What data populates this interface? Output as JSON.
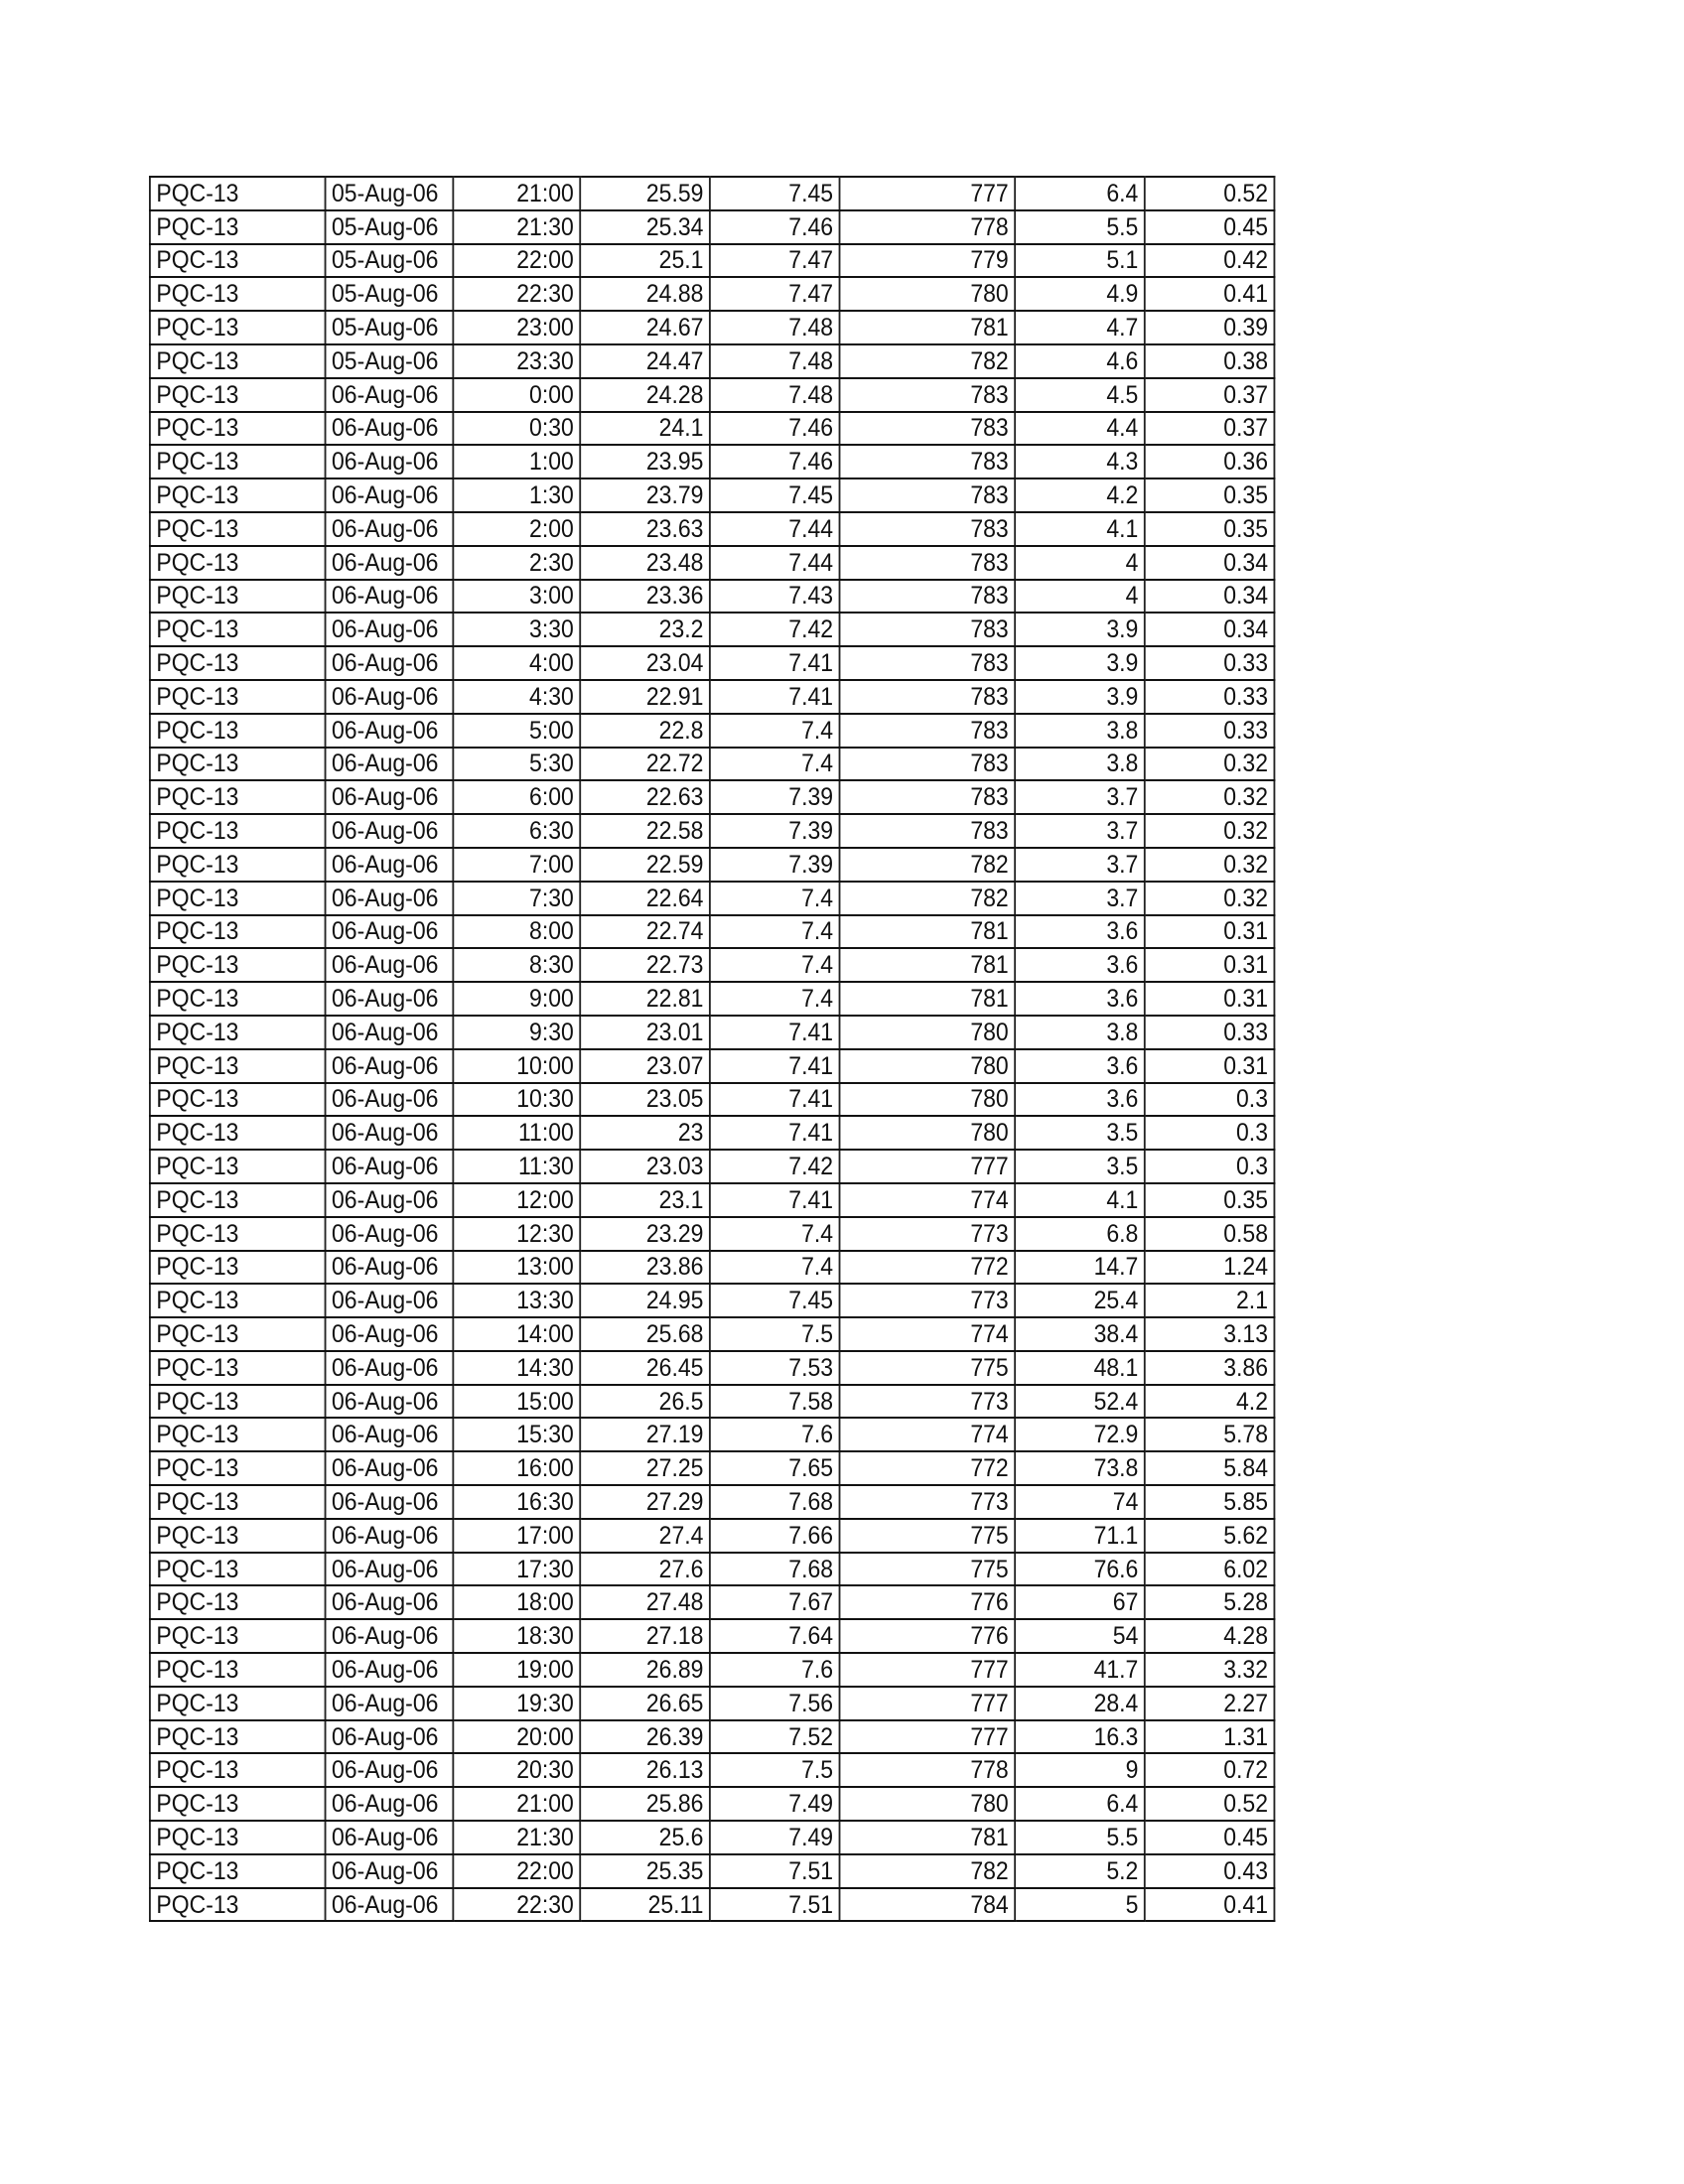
{
  "table": {
    "station": "PQC-13",
    "rows": [
      [
        "PQC-13",
        "05-Aug-06",
        "21:00",
        "25.59",
        "7.45",
        "777",
        "6.4",
        "0.52"
      ],
      [
        "PQC-13",
        "05-Aug-06",
        "21:30",
        "25.34",
        "7.46",
        "778",
        "5.5",
        "0.45"
      ],
      [
        "PQC-13",
        "05-Aug-06",
        "22:00",
        "25.1",
        "7.47",
        "779",
        "5.1",
        "0.42"
      ],
      [
        "PQC-13",
        "05-Aug-06",
        "22:30",
        "24.88",
        "7.47",
        "780",
        "4.9",
        "0.41"
      ],
      [
        "PQC-13",
        "05-Aug-06",
        "23:00",
        "24.67",
        "7.48",
        "781",
        "4.7",
        "0.39"
      ],
      [
        "PQC-13",
        "05-Aug-06",
        "23:30",
        "24.47",
        "7.48",
        "782",
        "4.6",
        "0.38"
      ],
      [
        "PQC-13",
        "06-Aug-06",
        "0:00",
        "24.28",
        "7.48",
        "783",
        "4.5",
        "0.37"
      ],
      [
        "PQC-13",
        "06-Aug-06",
        "0:30",
        "24.1",
        "7.46",
        "783",
        "4.4",
        "0.37"
      ],
      [
        "PQC-13",
        "06-Aug-06",
        "1:00",
        "23.95",
        "7.46",
        "783",
        "4.3",
        "0.36"
      ],
      [
        "PQC-13",
        "06-Aug-06",
        "1:30",
        "23.79",
        "7.45",
        "783",
        "4.2",
        "0.35"
      ],
      [
        "PQC-13",
        "06-Aug-06",
        "2:00",
        "23.63",
        "7.44",
        "783",
        "4.1",
        "0.35"
      ],
      [
        "PQC-13",
        "06-Aug-06",
        "2:30",
        "23.48",
        "7.44",
        "783",
        "4",
        "0.34"
      ],
      [
        "PQC-13",
        "06-Aug-06",
        "3:00",
        "23.36",
        "7.43",
        "783",
        "4",
        "0.34"
      ],
      [
        "PQC-13",
        "06-Aug-06",
        "3:30",
        "23.2",
        "7.42",
        "783",
        "3.9",
        "0.34"
      ],
      [
        "PQC-13",
        "06-Aug-06",
        "4:00",
        "23.04",
        "7.41",
        "783",
        "3.9",
        "0.33"
      ],
      [
        "PQC-13",
        "06-Aug-06",
        "4:30",
        "22.91",
        "7.41",
        "783",
        "3.9",
        "0.33"
      ],
      [
        "PQC-13",
        "06-Aug-06",
        "5:00",
        "22.8",
        "7.4",
        "783",
        "3.8",
        "0.33"
      ],
      [
        "PQC-13",
        "06-Aug-06",
        "5:30",
        "22.72",
        "7.4",
        "783",
        "3.8",
        "0.32"
      ],
      [
        "PQC-13",
        "06-Aug-06",
        "6:00",
        "22.63",
        "7.39",
        "783",
        "3.7",
        "0.32"
      ],
      [
        "PQC-13",
        "06-Aug-06",
        "6:30",
        "22.58",
        "7.39",
        "783",
        "3.7",
        "0.32"
      ],
      [
        "PQC-13",
        "06-Aug-06",
        "7:00",
        "22.59",
        "7.39",
        "782",
        "3.7",
        "0.32"
      ],
      [
        "PQC-13",
        "06-Aug-06",
        "7:30",
        "22.64",
        "7.4",
        "782",
        "3.7",
        "0.32"
      ],
      [
        "PQC-13",
        "06-Aug-06",
        "8:00",
        "22.74",
        "7.4",
        "781",
        "3.6",
        "0.31"
      ],
      [
        "PQC-13",
        "06-Aug-06",
        "8:30",
        "22.73",
        "7.4",
        "781",
        "3.6",
        "0.31"
      ],
      [
        "PQC-13",
        "06-Aug-06",
        "9:00",
        "22.81",
        "7.4",
        "781",
        "3.6",
        "0.31"
      ],
      [
        "PQC-13",
        "06-Aug-06",
        "9:30",
        "23.01",
        "7.41",
        "780",
        "3.8",
        "0.33"
      ],
      [
        "PQC-13",
        "06-Aug-06",
        "10:00",
        "23.07",
        "7.41",
        "780",
        "3.6",
        "0.31"
      ],
      [
        "PQC-13",
        "06-Aug-06",
        "10:30",
        "23.05",
        "7.41",
        "780",
        "3.6",
        "0.3"
      ],
      [
        "PQC-13",
        "06-Aug-06",
        "11:00",
        "23",
        "7.41",
        "780",
        "3.5",
        "0.3"
      ],
      [
        "PQC-13",
        "06-Aug-06",
        "11:30",
        "23.03",
        "7.42",
        "777",
        "3.5",
        "0.3"
      ],
      [
        "PQC-13",
        "06-Aug-06",
        "12:00",
        "23.1",
        "7.41",
        "774",
        "4.1",
        "0.35"
      ],
      [
        "PQC-13",
        "06-Aug-06",
        "12:30",
        "23.29",
        "7.4",
        "773",
        "6.8",
        "0.58"
      ],
      [
        "PQC-13",
        "06-Aug-06",
        "13:00",
        "23.86",
        "7.4",
        "772",
        "14.7",
        "1.24"
      ],
      [
        "PQC-13",
        "06-Aug-06",
        "13:30",
        "24.95",
        "7.45",
        "773",
        "25.4",
        "2.1"
      ],
      [
        "PQC-13",
        "06-Aug-06",
        "14:00",
        "25.68",
        "7.5",
        "774",
        "38.4",
        "3.13"
      ],
      [
        "PQC-13",
        "06-Aug-06",
        "14:30",
        "26.45",
        "7.53",
        "775",
        "48.1",
        "3.86"
      ],
      [
        "PQC-13",
        "06-Aug-06",
        "15:00",
        "26.5",
        "7.58",
        "773",
        "52.4",
        "4.2"
      ],
      [
        "PQC-13",
        "06-Aug-06",
        "15:30",
        "27.19",
        "7.6",
        "774",
        "72.9",
        "5.78"
      ],
      [
        "PQC-13",
        "06-Aug-06",
        "16:00",
        "27.25",
        "7.65",
        "772",
        "73.8",
        "5.84"
      ],
      [
        "PQC-13",
        "06-Aug-06",
        "16:30",
        "27.29",
        "7.68",
        "773",
        "74",
        "5.85"
      ],
      [
        "PQC-13",
        "06-Aug-06",
        "17:00",
        "27.4",
        "7.66",
        "775",
        "71.1",
        "5.62"
      ],
      [
        "PQC-13",
        "06-Aug-06",
        "17:30",
        "27.6",
        "7.68",
        "775",
        "76.6",
        "6.02"
      ],
      [
        "PQC-13",
        "06-Aug-06",
        "18:00",
        "27.48",
        "7.67",
        "776",
        "67",
        "5.28"
      ],
      [
        "PQC-13",
        "06-Aug-06",
        "18:30",
        "27.18",
        "7.64",
        "776",
        "54",
        "4.28"
      ],
      [
        "PQC-13",
        "06-Aug-06",
        "19:00",
        "26.89",
        "7.6",
        "777",
        "41.7",
        "3.32"
      ],
      [
        "PQC-13",
        "06-Aug-06",
        "19:30",
        "26.65",
        "7.56",
        "777",
        "28.4",
        "2.27"
      ],
      [
        "PQC-13",
        "06-Aug-06",
        "20:00",
        "26.39",
        "7.52",
        "777",
        "16.3",
        "1.31"
      ],
      [
        "PQC-13",
        "06-Aug-06",
        "20:30",
        "26.13",
        "7.5",
        "778",
        "9",
        "0.72"
      ],
      [
        "PQC-13",
        "06-Aug-06",
        "21:00",
        "25.86",
        "7.49",
        "780",
        "6.4",
        "0.52"
      ],
      [
        "PQC-13",
        "06-Aug-06",
        "21:30",
        "25.6",
        "7.49",
        "781",
        "5.5",
        "0.45"
      ],
      [
        "PQC-13",
        "06-Aug-06",
        "22:00",
        "25.35",
        "7.51",
        "782",
        "5.2",
        "0.43"
      ],
      [
        "PQC-13",
        "06-Aug-06",
        "22:30",
        "25.11",
        "7.51",
        "784",
        "5",
        "0.41"
      ]
    ]
  }
}
